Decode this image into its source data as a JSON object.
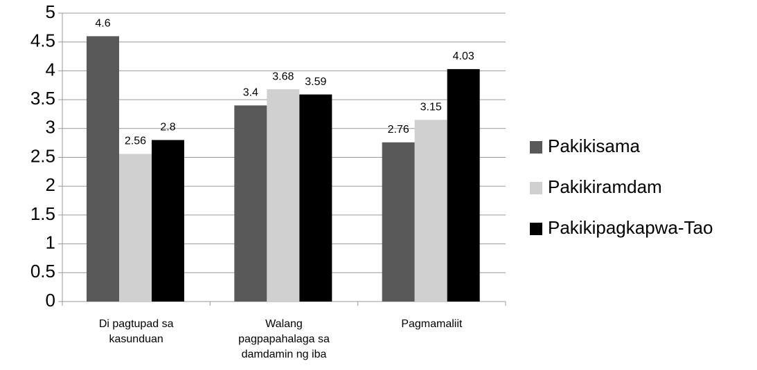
{
  "chart_data": {
    "type": "bar",
    "categories": [
      "Di pagtupad sa\nkasunduan",
      "Walang\npagpapahalaga sa\ndamdamin ng iba",
      "Pagmamaliit"
    ],
    "series": [
      {
        "name": "Pakikisama",
        "color": "#595959",
        "values": [
          4.6,
          3.4,
          2.76
        ]
      },
      {
        "name": "Pakikiramdam",
        "color": "#d0d0d0",
        "values": [
          2.56,
          3.68,
          3.15
        ]
      },
      {
        "name": "Pakikipagkapwa-Tao",
        "color": "#000000",
        "values": [
          2.8,
          3.59,
          4.03
        ]
      }
    ],
    "ylim": [
      0,
      5
    ],
    "yticks": [
      0,
      0.5,
      1,
      1.5,
      2,
      2.5,
      3,
      3.5,
      4,
      4.5,
      5
    ],
    "grid": true,
    "legend": "right"
  }
}
